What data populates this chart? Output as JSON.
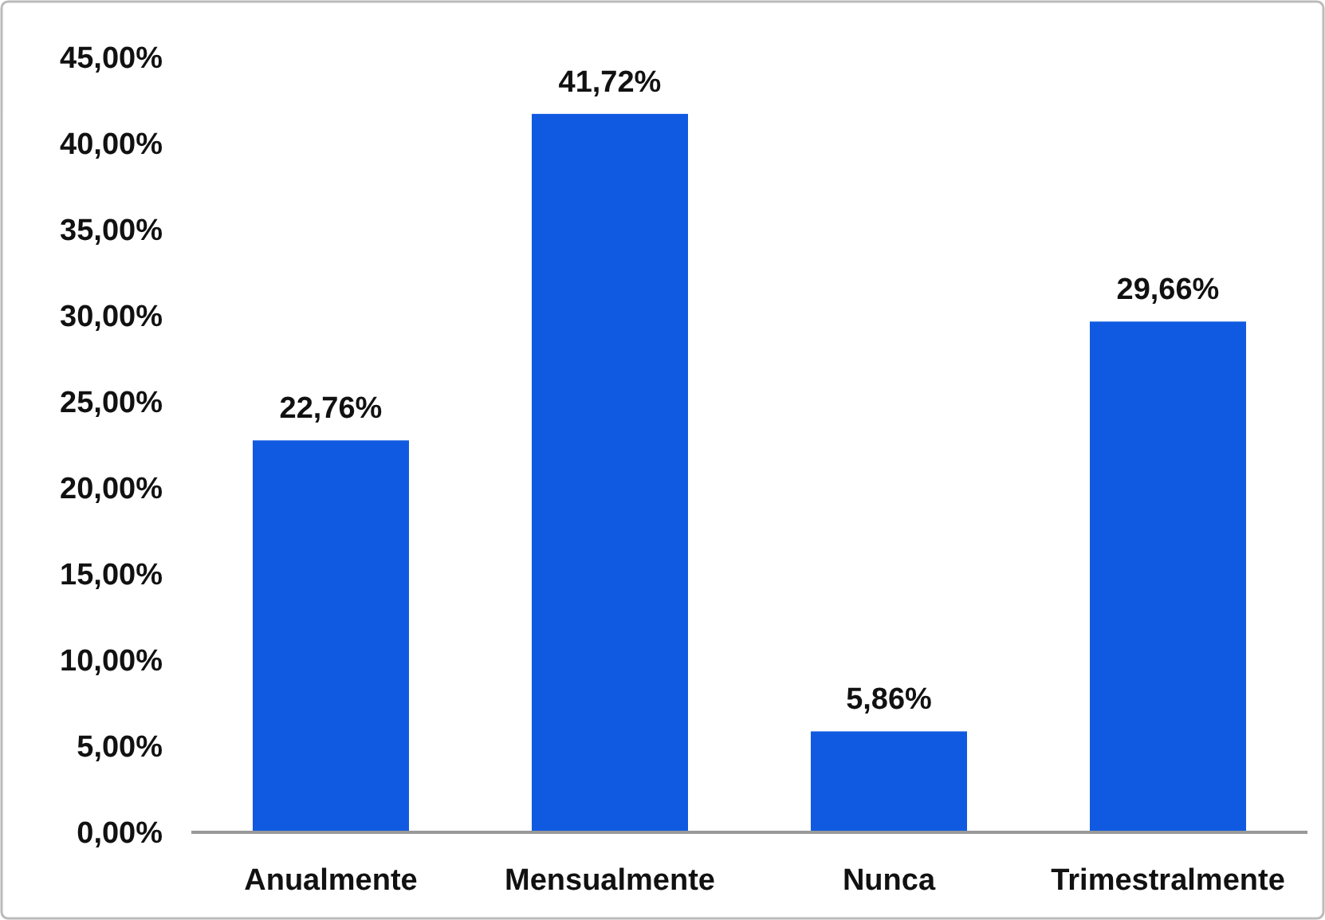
{
  "chart_data": {
    "type": "bar",
    "categories": [
      "Anualmente",
      "Mensualmente",
      "Nunca",
      "Trimestralmente"
    ],
    "values": [
      22.76,
      41.72,
      5.86,
      29.66
    ],
    "color": "#0f5ae0",
    "value_labels": [
      "22,76%",
      "41,72%",
      "5,86%",
      "29,66%"
    ],
    "ylim": [
      0,
      45
    ],
    "yticks": [
      {
        "value": 0,
        "label": "0,00%"
      },
      {
        "value": 5,
        "label": "5,00%"
      },
      {
        "value": 10,
        "label": "10,00%"
      },
      {
        "value": 15,
        "label": "15,00%"
      },
      {
        "value": 20,
        "label": "20,00%"
      },
      {
        "value": 25,
        "label": "25,00%"
      },
      {
        "value": 30,
        "label": "30,00%"
      },
      {
        "value": 35,
        "label": "35,00%"
      },
      {
        "value": 40,
        "label": "40,00%"
      },
      {
        "value": 45,
        "label": "45,00%"
      }
    ],
    "grid": false
  }
}
